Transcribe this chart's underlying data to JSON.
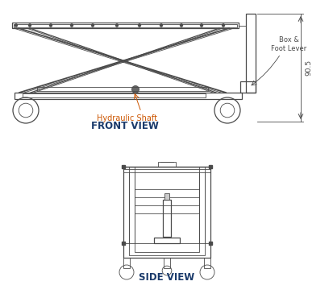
{
  "bg_color": "#ffffff",
  "line_color": "#4a4a4a",
  "line_color_dark": "#222222",
  "annotation_color_orange": "#cc5500",
  "label_color": "#1a3a6b",
  "front_view_label": "FRONT VIEW",
  "side_view_label": "SIDE VIEW",
  "hydraulic_label": "Hydraulic Shaft",
  "box_lever_label": "Box &\nFoot Lever",
  "dimension_label": "90.5",
  "figsize": [
    4.14,
    3.75
  ],
  "dpi": 100
}
